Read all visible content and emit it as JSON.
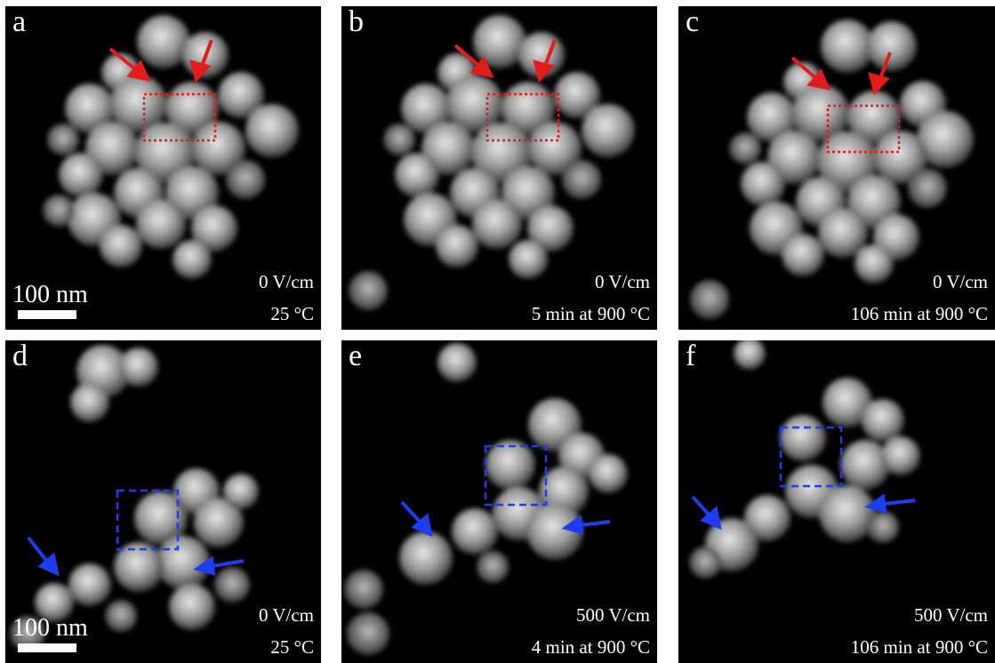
{
  "panels": [
    {
      "letter": "a",
      "field": "0 V/cm",
      "condition": "25 °C",
      "scale_label": "100 nm"
    },
    {
      "letter": "b",
      "field": "0 V/cm",
      "condition": "5 min at 900 °C",
      "scale_label": ""
    },
    {
      "letter": "c",
      "field": "0 V/cm",
      "condition": "106 min at 900 °C",
      "scale_label": ""
    },
    {
      "letter": "d",
      "field": "0 V/cm",
      "condition": "25 °C",
      "scale_label": "100 nm"
    },
    {
      "letter": "e",
      "field": "500 V/cm",
      "condition": "4 min at 900 °C",
      "scale_label": ""
    },
    {
      "letter": "f",
      "field": "500 V/cm",
      "condition": "106 min at 900 °C",
      "scale_label": ""
    }
  ],
  "colors": {
    "top_markers": "#e31b1b",
    "bottom_markers": "#1e3cf0",
    "background": "#000000",
    "text": "#ffffff"
  }
}
